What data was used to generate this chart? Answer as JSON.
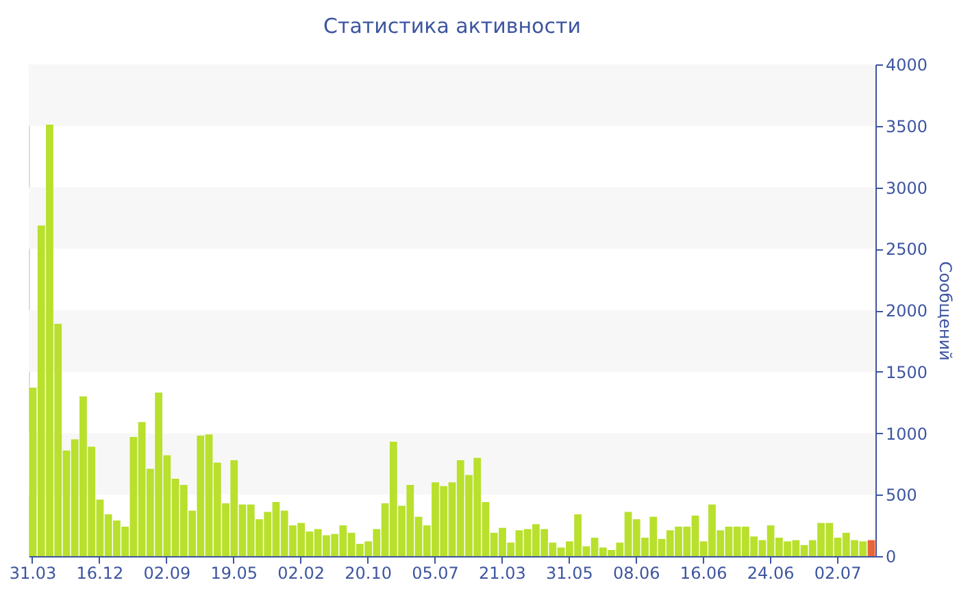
{
  "chart_data": {
    "type": "bar",
    "title": "Статистика активности",
    "ylabel": "Сообщений",
    "categories": [
      "31.03",
      null,
      null,
      null,
      null,
      null,
      null,
      null,
      "16.12",
      null,
      null,
      null,
      null,
      null,
      null,
      null,
      "02.09",
      null,
      null,
      null,
      null,
      null,
      null,
      null,
      "19.05",
      null,
      null,
      null,
      null,
      null,
      null,
      null,
      "02.02",
      null,
      null,
      null,
      null,
      null,
      null,
      null,
      "20.10",
      null,
      null,
      null,
      null,
      null,
      null,
      null,
      "05.07",
      null,
      null,
      null,
      null,
      null,
      null,
      null,
      "21.03",
      null,
      null,
      null,
      null,
      null,
      null,
      null,
      "31.05",
      null,
      null,
      null,
      null,
      null,
      null,
      null,
      "08.06",
      null,
      null,
      null,
      null,
      null,
      null,
      null,
      "16.06",
      null,
      null,
      null,
      null,
      null,
      null,
      null,
      "24.06",
      null,
      null,
      null,
      null,
      null,
      null,
      null,
      "02.07",
      null,
      null,
      null,
      null
    ],
    "values": [
      1370,
      2690,
      3510,
      1890,
      860,
      950,
      1300,
      890,
      460,
      340,
      290,
      240,
      970,
      1090,
      710,
      1330,
      820,
      630,
      580,
      370,
      980,
      990,
      760,
      430,
      780,
      420,
      420,
      300,
      360,
      440,
      370,
      250,
      270,
      200,
      220,
      170,
      180,
      250,
      190,
      100,
      120,
      220,
      430,
      930,
      410,
      580,
      320,
      250,
      600,
      570,
      600,
      780,
      660,
      800,
      440,
      190,
      230,
      110,
      210,
      220,
      260,
      220,
      110,
      70,
      120,
      340,
      80,
      150,
      70,
      50,
      110,
      360,
      300,
      150,
      320,
      140,
      210,
      240,
      240,
      330,
      120,
      420,
      210,
      240,
      240,
      240,
      160,
      130,
      250,
      150,
      120,
      130,
      90,
      130,
      270,
      270,
      150,
      190,
      130,
      120,
      130
    ],
    "colors": [
      "#b8e02c",
      "#b8e02c",
      "#b8e02c",
      "#b8e02c",
      "#b8e02c",
      "#b8e02c",
      "#b8e02c",
      "#b8e02c",
      "#b8e02c",
      "#b8e02c",
      "#b8e02c",
      "#b8e02c",
      "#b8e02c",
      "#b8e02c",
      "#b8e02c",
      "#b8e02c",
      "#b8e02c",
      "#b8e02c",
      "#b8e02c",
      "#b8e02c",
      "#b8e02c",
      "#b8e02c",
      "#b8e02c",
      "#b8e02c",
      "#b8e02c",
      "#b8e02c",
      "#b8e02c",
      "#b8e02c",
      "#b8e02c",
      "#b8e02c",
      "#b8e02c",
      "#b8e02c",
      "#b8e02c",
      "#b8e02c",
      "#b8e02c",
      "#b8e02c",
      "#b8e02c",
      "#b8e02c",
      "#b8e02c",
      "#b8e02c",
      "#b8e02c",
      "#b8e02c",
      "#b8e02c",
      "#b8e02c",
      "#b8e02c",
      "#b8e02c",
      "#b8e02c",
      "#b8e02c",
      "#b8e02c",
      "#b8e02c",
      "#b8e02c",
      "#b8e02c",
      "#b8e02c",
      "#b8e02c",
      "#b8e02c",
      "#b8e02c",
      "#b8e02c",
      "#b8e02c",
      "#b8e02c",
      "#b8e02c",
      "#b8e02c",
      "#b8e02c",
      "#b8e02c",
      "#b8e02c",
      "#b8e02c",
      "#b8e02c",
      "#b8e02c",
      "#b8e02c",
      "#b8e02c",
      "#b8e02c",
      "#b8e02c",
      "#b8e02c",
      "#b8e02c",
      "#b8e02c",
      "#b8e02c",
      "#b8e02c",
      "#b8e02c",
      "#b8e02c",
      "#b8e02c",
      "#b8e02c",
      "#b8e02c",
      "#b8e02c",
      "#b8e02c",
      "#b8e02c",
      "#b8e02c",
      "#b8e02c",
      "#b8e02c",
      "#b8e02c",
      "#b8e02c",
      "#b8e02c",
      "#b8e02c",
      "#b8e02c",
      "#b8e02c",
      "#b8e02c",
      "#b8e02c",
      "#b8e02c",
      "#b8e02c",
      "#b8e02c",
      "#b8e02c",
      "#b8e02c",
      "#e8643a"
    ],
    "ylim": [
      0,
      4000
    ],
    "yticks": [
      0,
      500,
      1000,
      1500,
      2000,
      2500,
      3000,
      3500,
      4000
    ],
    "bands": [
      {
        "axis": "y",
        "from": 500,
        "to": 1000,
        "color": "#f7f7f7"
      },
      {
        "axis": "y",
        "from": 1500,
        "to": 2000,
        "color": "#f7f7f7"
      },
      {
        "axis": "y",
        "from": 2500,
        "to": 3000,
        "color": "#f7f7f7"
      },
      {
        "axis": "y",
        "from": 3500,
        "to": 4000,
        "color": "#f7f7f7"
      }
    ],
    "grid": false
  }
}
